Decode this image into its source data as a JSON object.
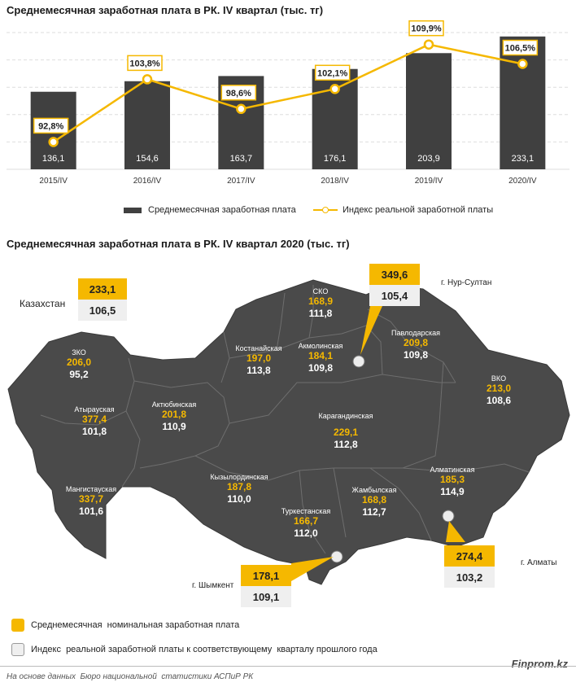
{
  "top_chart": {
    "title": "Среднемесячная заработная плата в РК. IV квартал (тыс. тг)",
    "legend": {
      "bar": "Среднемесячная заработная плата",
      "line": "Индекс реальной заработной платы"
    }
  },
  "chart_data": {
    "type": "bar",
    "title": "Среднемесячная заработная плата в РК. IV квартал (тыс. тг)",
    "categories": [
      "2015/IV",
      "2016/IV",
      "2017/IV",
      "2018/IV",
      "2019/IV",
      "2020/IV"
    ],
    "series": [
      {
        "name": "Среднемесячная заработная плата",
        "type": "bar",
        "values": [
          136.1,
          154.6,
          163.7,
          176.1,
          203.9,
          233.1
        ],
        "labels": [
          "136,1",
          "154,6",
          "163,7",
          "176,1",
          "203,9",
          "233,1"
        ],
        "color": "#404040"
      },
      {
        "name": "Индекс реальной заработной платы",
        "type": "line",
        "values": [
          92.8,
          103.8,
          98.6,
          102.1,
          109.9,
          106.5
        ],
        "labels": [
          "92,8%",
          "103,8%",
          "98,6%",
          "102,1%",
          "109,9%",
          "106,5%"
        ],
        "color": "#f5b800"
      }
    ],
    "bar_ylim": [
      0,
      240
    ],
    "line_ylim": [
      88,
      112
    ],
    "grid": true,
    "legend_position": "bottom"
  },
  "map": {
    "title": "Среднемесячная заработная плата в РК. IV квартал 2020 (тыс. тг)",
    "kazakhstan": {
      "label": "Казахстан",
      "wage": "233,1",
      "index": "106,5"
    },
    "regions": [
      {
        "name": "ЗКО",
        "wage": "206,0",
        "index": "95,2"
      },
      {
        "name": "Атырауская",
        "wage": "377,4",
        "index": "101,8"
      },
      {
        "name": "Мангистауская",
        "wage": "337,7",
        "index": "101,6"
      },
      {
        "name": "Актюбинская",
        "wage": "201,8",
        "index": "110,9"
      },
      {
        "name": "Костанайская",
        "wage": "197,0",
        "index": "113,8"
      },
      {
        "name": "СКО",
        "wage": "168,9",
        "index": "111,8"
      },
      {
        "name": "Акмолинская",
        "wage": "184,1",
        "index": "109,8"
      },
      {
        "name": "Павлодарская",
        "wage": "209,8",
        "index": "109,8"
      },
      {
        "name": "ВКО",
        "wage": "213,0",
        "index": "108,6"
      },
      {
        "name": "Карагандинская",
        "wage": "229,1",
        "index": "112,8"
      },
      {
        "name": "Кызылординская",
        "wage": "187,8",
        "index": "110,0"
      },
      {
        "name": "Туркестанская",
        "wage": "166,7",
        "index": "112,0"
      },
      {
        "name": "Жамбылская",
        "wage": "168,8",
        "index": "112,7"
      },
      {
        "name": "Алматинская",
        "wage": "185,3",
        "index": "114,9"
      }
    ],
    "cities": [
      {
        "name": "г. Нур-Султан",
        "wage": "349,6",
        "index": "105,4"
      },
      {
        "name": "г. Алматы",
        "wage": "274,4",
        "index": "103,2"
      },
      {
        "name": "г. Шымкент",
        "wage": "178,1",
        "index": "109,1"
      }
    ],
    "legend": {
      "wage": "Среднемесячная  номинальная заработная плата",
      "index": "Индекс  реальной заработной платы к соответствующему  кварталу прошлого года"
    },
    "colors": {
      "map_fill": "#4a4a4a",
      "accent": "#f5b800",
      "box_grey": "#efefef"
    }
  },
  "footer": {
    "source": "На основе данных  Бюро национальной  статистики АСПиР РК",
    "brand": "Finprom.kz"
  }
}
